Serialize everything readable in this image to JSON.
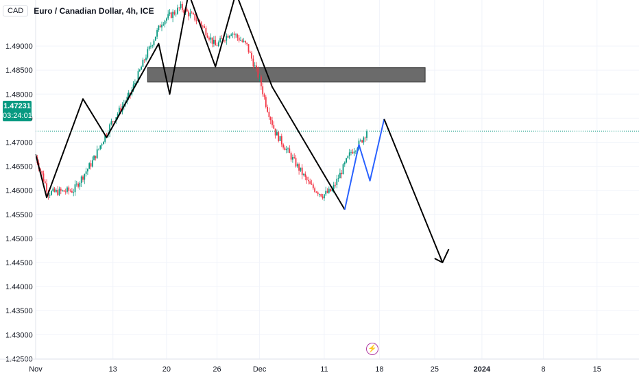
{
  "header": {
    "currency_badge": "CAD",
    "symbol_title": "Euro / Canadian Dollar, 4h, ICE"
  },
  "price_tag": {
    "value": "1.47231",
    "countdown": "03:24:01",
    "color": "#089981"
  },
  "icons": {
    "flash": "lightning-icon"
  },
  "colors": {
    "up": "#089981",
    "down": "#f23645",
    "zone_fill": "#6b6b6b",
    "pattern_black": "#000000",
    "pattern_blue": "#2962ff"
  },
  "chart_data": {
    "type": "candlestick",
    "symbol": "Euro / Canadian Dollar, 4h, ICE",
    "ylim": [
      1.42,
      1.495
    ],
    "y_ticks": [
      "1.49000",
      "1.48500",
      "1.48000",
      "1.47500",
      "1.47000",
      "1.46500",
      "1.46000",
      "1.45500",
      "1.45000",
      "1.44500",
      "1.44000",
      "1.43500",
      "1.43000",
      "1.42500"
    ],
    "x_ticks": [
      {
        "label": "Nov",
        "bar": 0
      },
      {
        "label": "13",
        "bar": 49
      },
      {
        "label": "20",
        "bar": 83
      },
      {
        "label": "26",
        "bar": 115
      },
      {
        "label": "Dec",
        "bar": 142
      },
      {
        "label": "11",
        "bar": 183
      },
      {
        "label": "18",
        "bar": 218
      },
      {
        "label": "25",
        "bar": 253
      },
      {
        "label": "2024",
        "bar": 283,
        "bold": true
      },
      {
        "label": "8",
        "bar": 322
      },
      {
        "label": "15",
        "bar": 356
      }
    ],
    "last_price": 1.47231,
    "anchors": [
      [
        0,
        1.467
      ],
      [
        8,
        1.4595
      ],
      [
        24,
        1.46
      ],
      [
        36,
        1.466
      ],
      [
        48,
        1.474
      ],
      [
        60,
        1.48
      ],
      [
        70,
        1.488
      ],
      [
        80,
        1.495
      ],
      [
        92,
        1.498
      ],
      [
        104,
        1.495
      ],
      [
        114,
        1.49
      ],
      [
        124,
        1.493
      ],
      [
        134,
        1.49
      ],
      [
        142,
        1.483
      ],
      [
        146,
        1.478
      ],
      [
        152,
        1.472
      ],
      [
        158,
        1.469
      ],
      [
        166,
        1.465
      ],
      [
        174,
        1.461
      ],
      [
        182,
        1.459
      ],
      [
        188,
        1.46
      ],
      [
        194,
        1.464
      ],
      [
        200,
        1.468
      ],
      [
        206,
        1.47
      ],
      [
        210,
        1.4723
      ]
    ],
    "zone": {
      "x_start_bar": 71,
      "x_end_bar": 247,
      "y_top": 1.4855,
      "y_bottom": 1.4825
    },
    "pattern_lines": [
      {
        "color": "black",
        "points": [
          [
            0,
            1.4675
          ],
          [
            7,
            1.4585
          ],
          [
            30,
            1.479
          ],
          [
            45,
            1.471
          ],
          [
            78,
            1.4905
          ],
          [
            85,
            1.48
          ],
          [
            97,
            1.501
          ],
          [
            114,
            1.4857
          ],
          [
            127,
            1.501
          ],
          [
            150,
            1.4815
          ],
          [
            196,
            1.456
          ]
        ]
      },
      {
        "color": "blue",
        "points": [
          [
            196,
            1.456
          ],
          [
            205,
            1.4695
          ],
          [
            212,
            1.462
          ],
          [
            221,
            1.4748
          ]
        ]
      },
      {
        "color": "black",
        "points": [
          [
            221,
            1.4748
          ],
          [
            258,
            1.445
          ]
        ]
      }
    ],
    "arrow_head": {
      "at": [
        258,
        1.445
      ],
      "from": [
        262,
        1.4478
      ]
    }
  }
}
